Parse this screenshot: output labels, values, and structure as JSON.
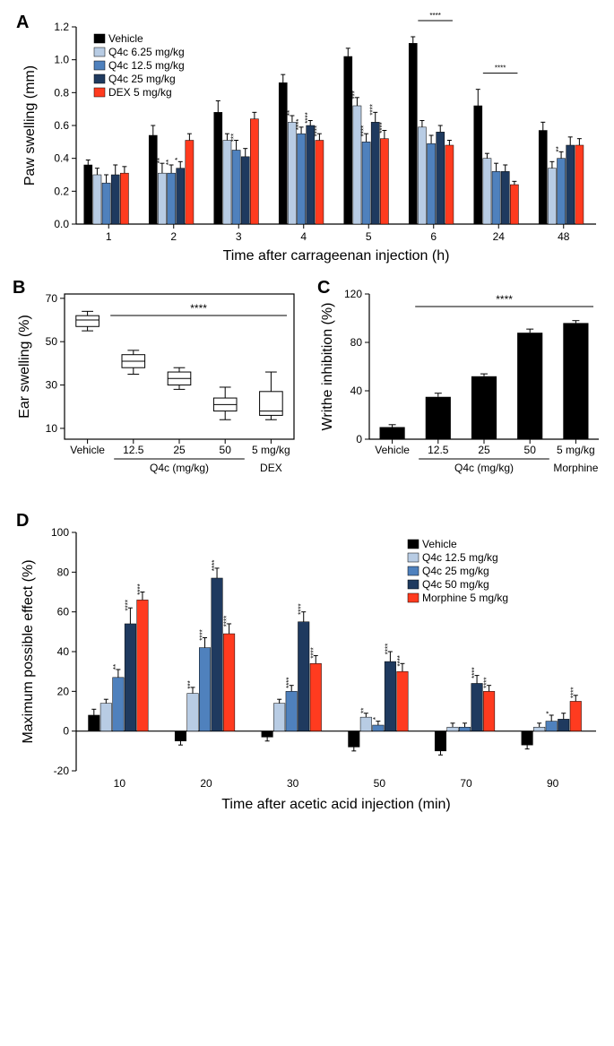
{
  "colors": {
    "vehicle": "#000000",
    "q4c_low": "#b8cce4",
    "q4c_mid": "#4f81bd",
    "q4c_high": "#1f3a5f",
    "control": "#ff3b1f",
    "box_fill": "#ffffff",
    "bar_c": "#000000"
  },
  "panelA": {
    "label": "A",
    "type": "grouped-bar",
    "ylabel": "Paw swelling (mm)",
    "xlabel": "Time after carrageenan injection (h)",
    "ylim": [
      0,
      1.2
    ],
    "ytick_step": 0.2,
    "categories": [
      "1",
      "2",
      "3",
      "4",
      "5",
      "6",
      "24",
      "48"
    ],
    "legend": [
      "Vehicle",
      "Q4c 6.25 mg/kg",
      "Q4c 12.5 mg/kg",
      "Q4c 25 mg/kg",
      "DEX 5 mg/kg"
    ],
    "series": [
      {
        "color": "#000000",
        "values": [
          0.36,
          0.54,
          0.68,
          0.86,
          1.02,
          1.1,
          0.72,
          0.57
        ],
        "err": [
          0.03,
          0.06,
          0.07,
          0.05,
          0.05,
          0.04,
          0.1,
          0.05
        ]
      },
      {
        "color": "#b8cce4",
        "values": [
          0.3,
          0.31,
          0.51,
          0.62,
          0.72,
          0.59,
          0.4,
          0.34
        ],
        "err": [
          0.04,
          0.06,
          0.04,
          0.04,
          0.05,
          0.04,
          0.03,
          0.04
        ],
        "sig": [
          "",
          "**",
          "",
          "**",
          "***",
          "",
          "",
          ""
        ]
      },
      {
        "color": "#4f81bd",
        "values": [
          0.25,
          0.31,
          0.45,
          0.55,
          0.5,
          0.49,
          0.32,
          0.4
        ],
        "err": [
          0.05,
          0.05,
          0.06,
          0.04,
          0.05,
          0.05,
          0.05,
          0.04
        ],
        "sig": [
          "",
          "**",
          "***",
          "****",
          "****",
          "",
          "",
          "**"
        ]
      },
      {
        "color": "#1f3a5f",
        "values": [
          0.3,
          0.34,
          0.41,
          0.6,
          0.62,
          0.56,
          0.32,
          0.48
        ],
        "err": [
          0.06,
          0.04,
          0.05,
          0.03,
          0.06,
          0.04,
          0.04,
          0.05
        ],
        "sig": [
          "",
          "*",
          "",
          "****",
          "****",
          "",
          "",
          ""
        ]
      },
      {
        "color": "#ff3b1f",
        "values": [
          0.31,
          0.51,
          0.64,
          0.51,
          0.52,
          0.48,
          0.24,
          0.48
        ],
        "err": [
          0.04,
          0.04,
          0.04,
          0.04,
          0.05,
          0.03,
          0.02,
          0.04
        ],
        "sig": [
          "",
          "",
          "",
          "****",
          "****",
          "",
          "",
          ""
        ]
      }
    ],
    "bracket_sig": [
      {
        "cat_idx": 5,
        "text": "****"
      },
      {
        "cat_idx": 6,
        "text": "****"
      }
    ]
  },
  "panelB": {
    "label": "B",
    "type": "boxplot",
    "ylabel": "Ear swelling (%)",
    "ylim": [
      5,
      72
    ],
    "yticks": [
      10,
      30,
      50,
      70
    ],
    "categories": [
      "Vehicle",
      "12.5",
      "25",
      "50",
      "5 mg/kg"
    ],
    "group_labels": {
      "mid": "Q4c (mg/kg)",
      "right": "DEX"
    },
    "boxes": [
      {
        "q1": 57,
        "med": 60,
        "q3": 62,
        "lo": 55,
        "hi": 64
      },
      {
        "q1": 38,
        "med": 41,
        "q3": 44,
        "lo": 35,
        "hi": 46
      },
      {
        "q1": 30,
        "med": 33,
        "q3": 36,
        "lo": 28,
        "hi": 38
      },
      {
        "q1": 18,
        "med": 21,
        "q3": 24,
        "lo": 14,
        "hi": 29
      },
      {
        "q1": 16,
        "med": 18,
        "q3": 27,
        "lo": 14,
        "hi": 36
      }
    ],
    "sig": "****"
  },
  "panelC": {
    "label": "C",
    "type": "bar",
    "ylabel": "Writhe inhibition (%)",
    "ylim": [
      0,
      120
    ],
    "ytick_step": 40,
    "categories": [
      "Vehicle",
      "12.5",
      "25",
      "50",
      "5 mg/kg"
    ],
    "group_labels": {
      "mid": "Q4c (mg/kg)",
      "right": "Morphine"
    },
    "values": [
      10,
      35,
      52,
      88,
      96
    ],
    "err": [
      2,
      3,
      2,
      3,
      2
    ],
    "bar_color": "#000000",
    "sig": "****"
  },
  "panelD": {
    "label": "D",
    "type": "grouped-bar",
    "ylabel": "Maximum possible effect (%)",
    "xlabel": "Time after acetic acid injection (min)",
    "ylim": [
      -20,
      100
    ],
    "ytick_step": 20,
    "categories": [
      "10",
      "20",
      "30",
      "50",
      "70",
      "90"
    ],
    "legend": [
      "Vehicle",
      "Q4c 12.5 mg/kg",
      "Q4c 25 mg/kg",
      "Q4c 50 mg/kg",
      "Morphine 5 mg/kg"
    ],
    "series": [
      {
        "color": "#000000",
        "values": [
          8,
          -5,
          -3,
          -8,
          -10,
          -7
        ],
        "err": [
          3,
          2,
          2,
          2,
          2,
          2
        ]
      },
      {
        "color": "#b8cce4",
        "values": [
          14,
          19,
          14,
          7,
          2,
          2
        ],
        "err": [
          2,
          3,
          2,
          2,
          2,
          2
        ],
        "sig": [
          "",
          "***",
          "",
          "**",
          "",
          ""
        ]
      },
      {
        "color": "#4f81bd",
        "values": [
          27,
          42,
          20,
          3,
          2,
          5
        ],
        "err": [
          4,
          5,
          3,
          2,
          2,
          3
        ],
        "sig": [
          "**",
          "****",
          "****",
          "*",
          "",
          "*"
        ]
      },
      {
        "color": "#1f3a5f",
        "values": [
          54,
          77,
          55,
          35,
          24,
          6
        ],
        "err": [
          8,
          5,
          5,
          5,
          4,
          3
        ],
        "sig": [
          "****",
          "****",
          "****",
          "****",
          "****",
          ""
        ]
      },
      {
        "color": "#ff3b1f",
        "values": [
          66,
          49,
          34,
          30,
          20,
          15
        ],
        "err": [
          4,
          5,
          4,
          4,
          3,
          3
        ],
        "sig": [
          "****",
          "****",
          "****",
          "****",
          "****",
          "****"
        ]
      }
    ]
  }
}
